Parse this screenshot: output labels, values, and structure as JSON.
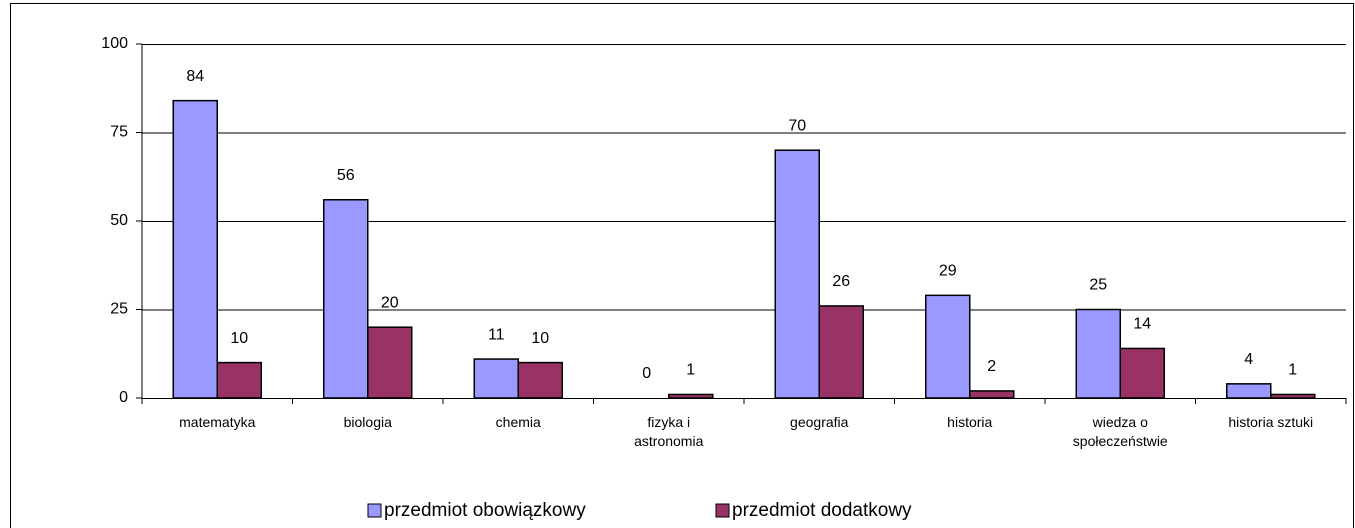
{
  "chart_data": {
    "type": "bar",
    "categories": [
      "matematyka",
      "biologia",
      "chemia",
      "fizyka i astronomia",
      "geografia",
      "historia",
      "wiedza o społeczeństwie",
      "historia sztuki"
    ],
    "series": [
      {
        "name": "przedmiot obowiązkowy",
        "color": "#9999ff",
        "values": [
          84,
          56,
          11,
          0,
          70,
          29,
          25,
          4
        ]
      },
      {
        "name": "przedmiot dodatkowy",
        "color": "#993366",
        "values": [
          10,
          20,
          10,
          1,
          26,
          2,
          14,
          1
        ]
      }
    ],
    "ylim": [
      0,
      100
    ],
    "yticks": [
      0,
      25,
      50,
      75,
      100
    ],
    "grid": true,
    "legend": "bottom"
  }
}
